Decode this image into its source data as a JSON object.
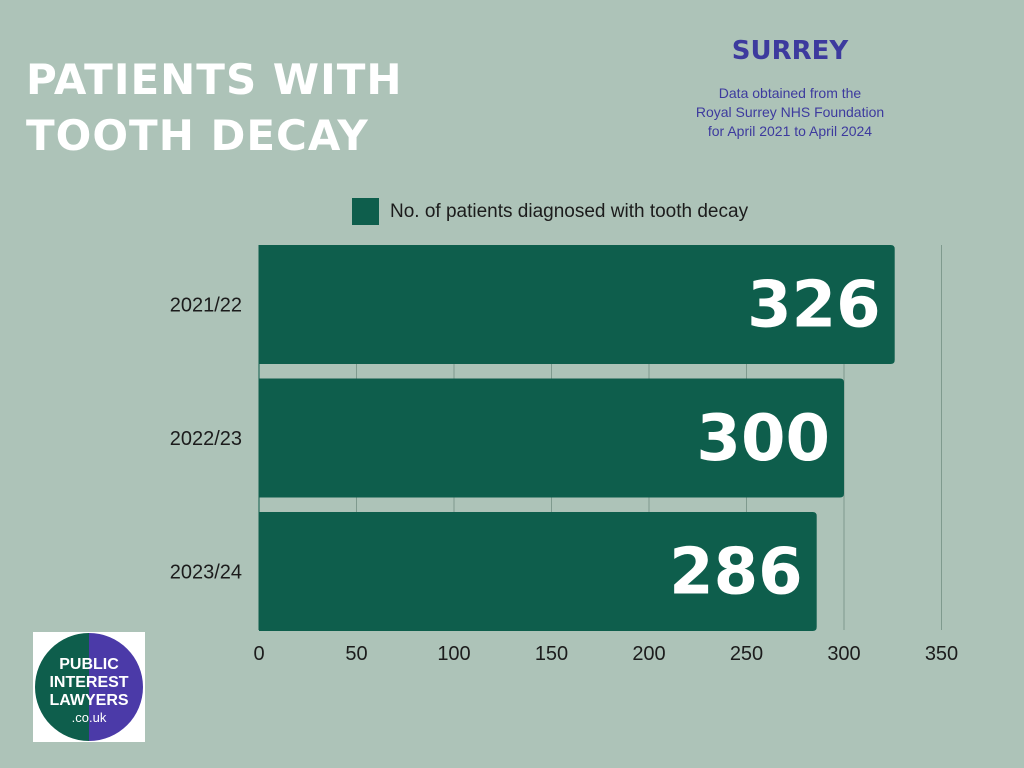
{
  "title_lines": [
    "PATIENTS WITH",
    "TOOTH DECAY"
  ],
  "region": "SURREY",
  "source_note_lines": [
    "Data obtained from the",
    "Royal Surrey NHS Foundation",
    "for April 2021 to April 2024"
  ],
  "logo": {
    "line1": "PUBLIC",
    "line2": "INTEREST",
    "line3": "LAWYERS",
    "line4": ".co.uk"
  },
  "colors": {
    "background": "#adc3b8",
    "bar": "#0e5e4c",
    "title": "#ffffff",
    "accent": "#3d3a9e",
    "logo_green": "#0e5e4c",
    "logo_purple": "#4b3aa8"
  },
  "chart_data": {
    "type": "bar",
    "orientation": "horizontal",
    "categories": [
      "2021/22",
      "2022/23",
      "2023/24"
    ],
    "series": [
      {
        "name": "No. of patients diagnosed with tooth decay",
        "values": [
          326,
          300,
          286
        ]
      }
    ],
    "xlim": [
      0,
      350
    ],
    "x_ticks": [
      0,
      50,
      100,
      150,
      200,
      250,
      300,
      350
    ],
    "grid": true,
    "legend_position": "top",
    "data_labels": true
  }
}
